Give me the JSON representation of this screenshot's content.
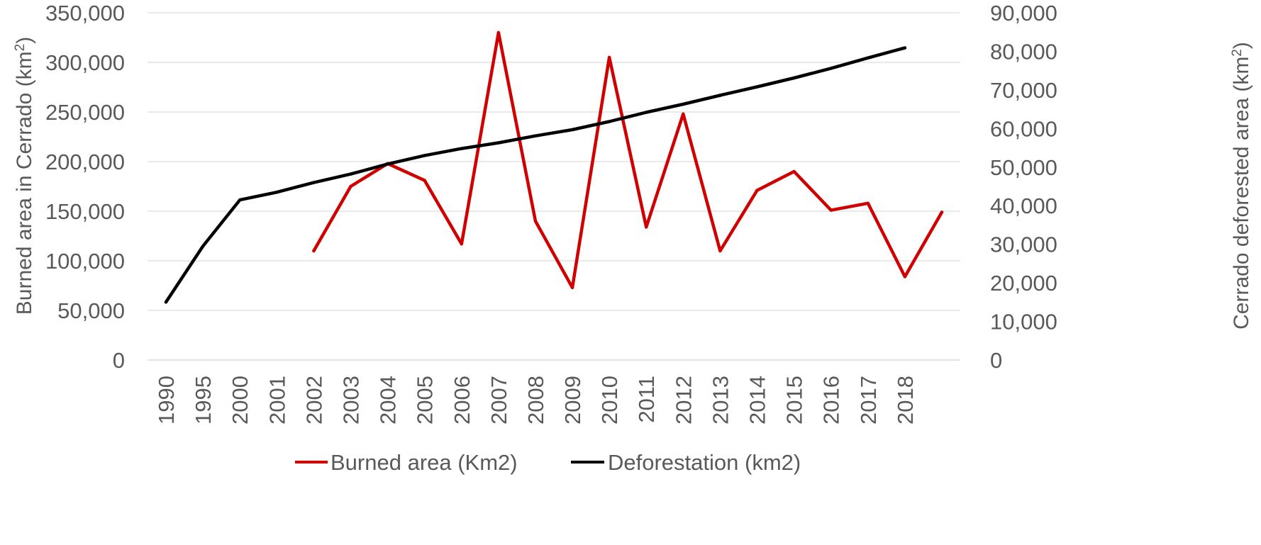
{
  "chart_data": {
    "type": "line",
    "categories": [
      "1990",
      "1995",
      "2000",
      "2001",
      "2002",
      "2003",
      "2004",
      "2005",
      "2006",
      "2007",
      "2008",
      "2009",
      "2010",
      "2011",
      "2012",
      "2013",
      "2014",
      "2015",
      "2016",
      "2017",
      "2018",
      ""
    ],
    "series": [
      {
        "name": "Burned area  (Km2)",
        "axis": "left",
        "color": "#d00000",
        "values": [
          null,
          null,
          null,
          null,
          110000,
          175000,
          198000,
          181000,
          117000,
          330000,
          140000,
          73000,
          305000,
          134000,
          248000,
          110000,
          171000,
          190000,
          151000,
          158000,
          84000,
          149000
        ]
      },
      {
        "name": "Deforestation (km2)",
        "axis": "right",
        "color": "#000000",
        "values": [
          15000,
          29500,
          41500,
          43500,
          46000,
          48200,
          50800,
          53000,
          54800,
          56300,
          58100,
          59700,
          61800,
          64200,
          66300,
          68600,
          70800,
          73100,
          75600,
          78300,
          80900,
          null
        ]
      }
    ],
    "left_axis": {
      "title_main": "Burned  area in Cerrado (km",
      "title_sup": "2",
      "title_end": ")",
      "min": 0,
      "max": 350000,
      "step": 50000,
      "tick_labels": [
        "0",
        "50,000",
        "100,000",
        "150,000",
        "200,000",
        "250,000",
        "300,000",
        "350,000"
      ]
    },
    "right_axis": {
      "title_main": "Cerrado deforested  area (km",
      "title_sup": "2",
      "title_end": ")",
      "min": 0,
      "max": 90000,
      "step": 10000,
      "tick_labels": [
        "0",
        "10,000",
        "20,000",
        "30,000",
        "40,000",
        "50,000",
        "60,000",
        "70,000",
        "80,000",
        "90,000"
      ]
    },
    "grid": true,
    "legend_position": "bottom",
    "legend": [
      "Burned area  (Km2)",
      "Deforestation (km2)"
    ]
  }
}
